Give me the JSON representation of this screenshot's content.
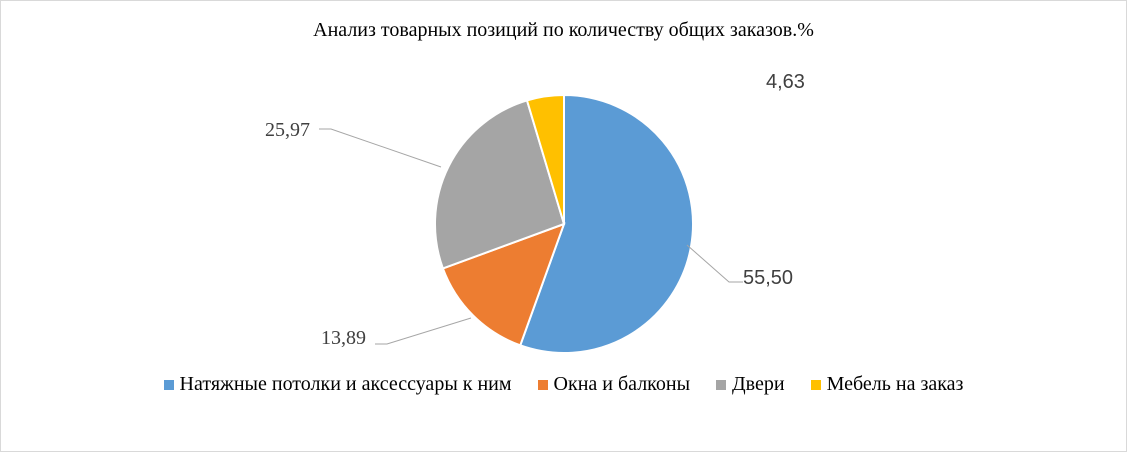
{
  "chart_data": {
    "type": "pie",
    "title": "Анализ товарных позиций по количеству общих заказов.%",
    "categories": [
      "Натяжные потолки и аксессуары к ним",
      "Окна и балконы",
      "Двери",
      "Мебель на заказ"
    ],
    "values": [
      55.5,
      13.89,
      25.97,
      4.63
    ],
    "value_labels": [
      "55,50",
      "13,89",
      "25,97",
      "4,63"
    ],
    "colors": [
      "#5b9bd5",
      "#ed7d31",
      "#a5a5a5",
      "#ffc000"
    ],
    "legend_position": "bottom",
    "start_angle_deg": 0,
    "direction": "clockwise"
  }
}
